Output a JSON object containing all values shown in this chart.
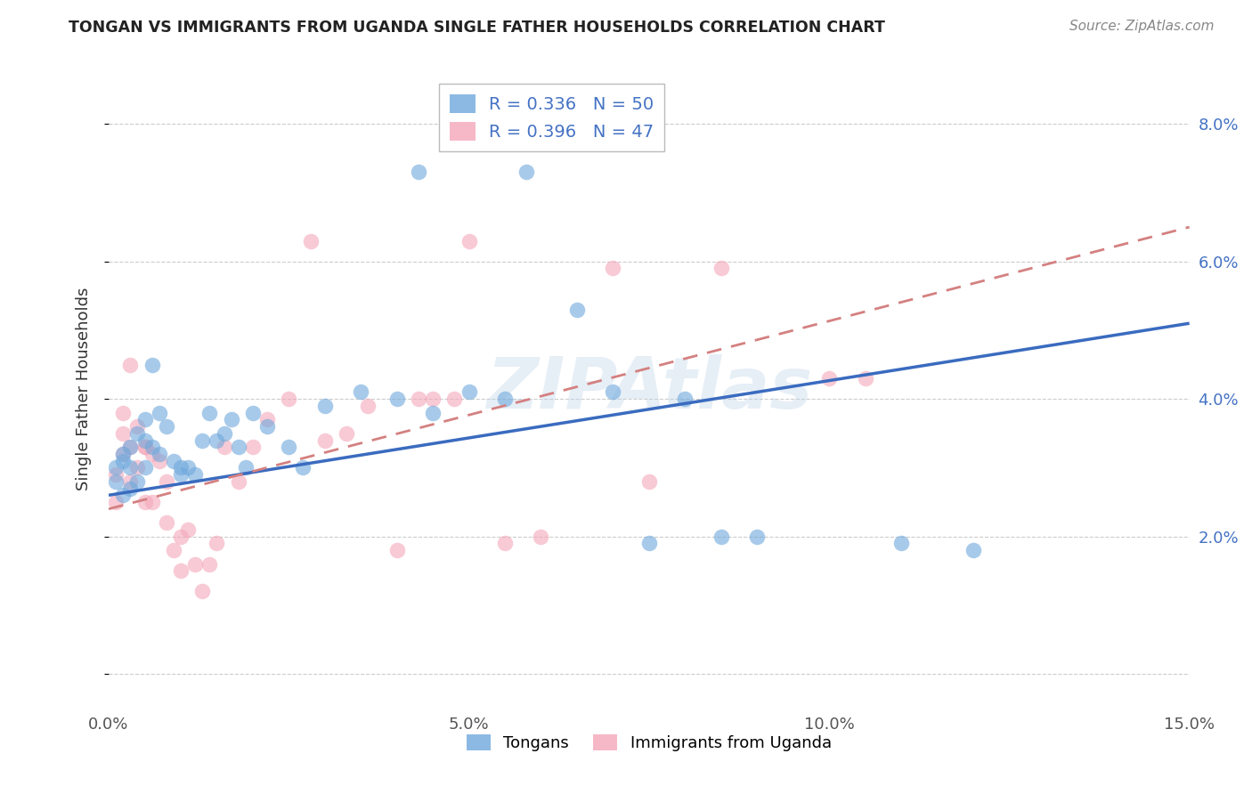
{
  "title": "TONGAN VS IMMIGRANTS FROM UGANDA SINGLE FATHER HOUSEHOLDS CORRELATION CHART",
  "source": "Source: ZipAtlas.com",
  "ylabel": "Single Father Households",
  "xlim": [
    0.0,
    0.15
  ],
  "ylim": [
    -0.005,
    0.088
  ],
  "yticks": [
    0.0,
    0.02,
    0.04,
    0.06,
    0.08
  ],
  "xticks": [
    0.0,
    0.05,
    0.1,
    0.15
  ],
  "xtick_labels": [
    "0.0%",
    "5.0%",
    "10.0%",
    "15.0%"
  ],
  "right_ytick_labels": [
    "2.0%",
    "4.0%",
    "6.0%",
    "8.0%"
  ],
  "blue_color": "#6fa8dc",
  "pink_color": "#f4a7b9",
  "line_blue": "#3a6bbf",
  "line_pink": "#d48080",
  "watermark": "ZIPAtlas",
  "blue_R": 0.336,
  "blue_N": 50,
  "pink_R": 0.396,
  "pink_N": 47,
  "blue_points": [
    [
      0.001,
      0.03
    ],
    [
      0.001,
      0.028
    ],
    [
      0.002,
      0.032
    ],
    [
      0.002,
      0.031
    ],
    [
      0.002,
      0.026
    ],
    [
      0.003,
      0.033
    ],
    [
      0.003,
      0.03
    ],
    [
      0.003,
      0.027
    ],
    [
      0.004,
      0.035
    ],
    [
      0.004,
      0.028
    ],
    [
      0.005,
      0.037
    ],
    [
      0.005,
      0.034
    ],
    [
      0.005,
      0.03
    ],
    [
      0.006,
      0.045
    ],
    [
      0.006,
      0.033
    ],
    [
      0.007,
      0.038
    ],
    [
      0.007,
      0.032
    ],
    [
      0.008,
      0.036
    ],
    [
      0.009,
      0.031
    ],
    [
      0.01,
      0.03
    ],
    [
      0.01,
      0.029
    ],
    [
      0.011,
      0.03
    ],
    [
      0.012,
      0.029
    ],
    [
      0.013,
      0.034
    ],
    [
      0.014,
      0.038
    ],
    [
      0.015,
      0.034
    ],
    [
      0.016,
      0.035
    ],
    [
      0.017,
      0.037
    ],
    [
      0.018,
      0.033
    ],
    [
      0.019,
      0.03
    ],
    [
      0.02,
      0.038
    ],
    [
      0.022,
      0.036
    ],
    [
      0.025,
      0.033
    ],
    [
      0.027,
      0.03
    ],
    [
      0.03,
      0.039
    ],
    [
      0.035,
      0.041
    ],
    [
      0.04,
      0.04
    ],
    [
      0.043,
      0.073
    ],
    [
      0.045,
      0.038
    ],
    [
      0.05,
      0.041
    ],
    [
      0.055,
      0.04
    ],
    [
      0.058,
      0.073
    ],
    [
      0.065,
      0.053
    ],
    [
      0.07,
      0.041
    ],
    [
      0.075,
      0.019
    ],
    [
      0.08,
      0.04
    ],
    [
      0.085,
      0.02
    ],
    [
      0.09,
      0.02
    ],
    [
      0.11,
      0.019
    ],
    [
      0.12,
      0.018
    ]
  ],
  "pink_points": [
    [
      0.001,
      0.029
    ],
    [
      0.001,
      0.025
    ],
    [
      0.002,
      0.035
    ],
    [
      0.002,
      0.038
    ],
    [
      0.002,
      0.032
    ],
    [
      0.003,
      0.045
    ],
    [
      0.003,
      0.033
    ],
    [
      0.003,
      0.028
    ],
    [
      0.004,
      0.036
    ],
    [
      0.004,
      0.03
    ],
    [
      0.005,
      0.033
    ],
    [
      0.005,
      0.033
    ],
    [
      0.005,
      0.025
    ],
    [
      0.006,
      0.032
    ],
    [
      0.006,
      0.025
    ],
    [
      0.007,
      0.031
    ],
    [
      0.008,
      0.028
    ],
    [
      0.008,
      0.022
    ],
    [
      0.009,
      0.018
    ],
    [
      0.01,
      0.02
    ],
    [
      0.01,
      0.015
    ],
    [
      0.011,
      0.021
    ],
    [
      0.012,
      0.016
    ],
    [
      0.013,
      0.012
    ],
    [
      0.014,
      0.016
    ],
    [
      0.015,
      0.019
    ],
    [
      0.016,
      0.033
    ],
    [
      0.018,
      0.028
    ],
    [
      0.02,
      0.033
    ],
    [
      0.022,
      0.037
    ],
    [
      0.025,
      0.04
    ],
    [
      0.028,
      0.063
    ],
    [
      0.03,
      0.034
    ],
    [
      0.033,
      0.035
    ],
    [
      0.036,
      0.039
    ],
    [
      0.04,
      0.018
    ],
    [
      0.043,
      0.04
    ],
    [
      0.045,
      0.04
    ],
    [
      0.048,
      0.04
    ],
    [
      0.05,
      0.063
    ],
    [
      0.055,
      0.019
    ],
    [
      0.06,
      0.02
    ],
    [
      0.07,
      0.059
    ],
    [
      0.075,
      0.028
    ],
    [
      0.085,
      0.059
    ],
    [
      0.1,
      0.043
    ],
    [
      0.105,
      0.043
    ]
  ],
  "background_color": "#ffffff",
  "grid_color": "#cccccc"
}
